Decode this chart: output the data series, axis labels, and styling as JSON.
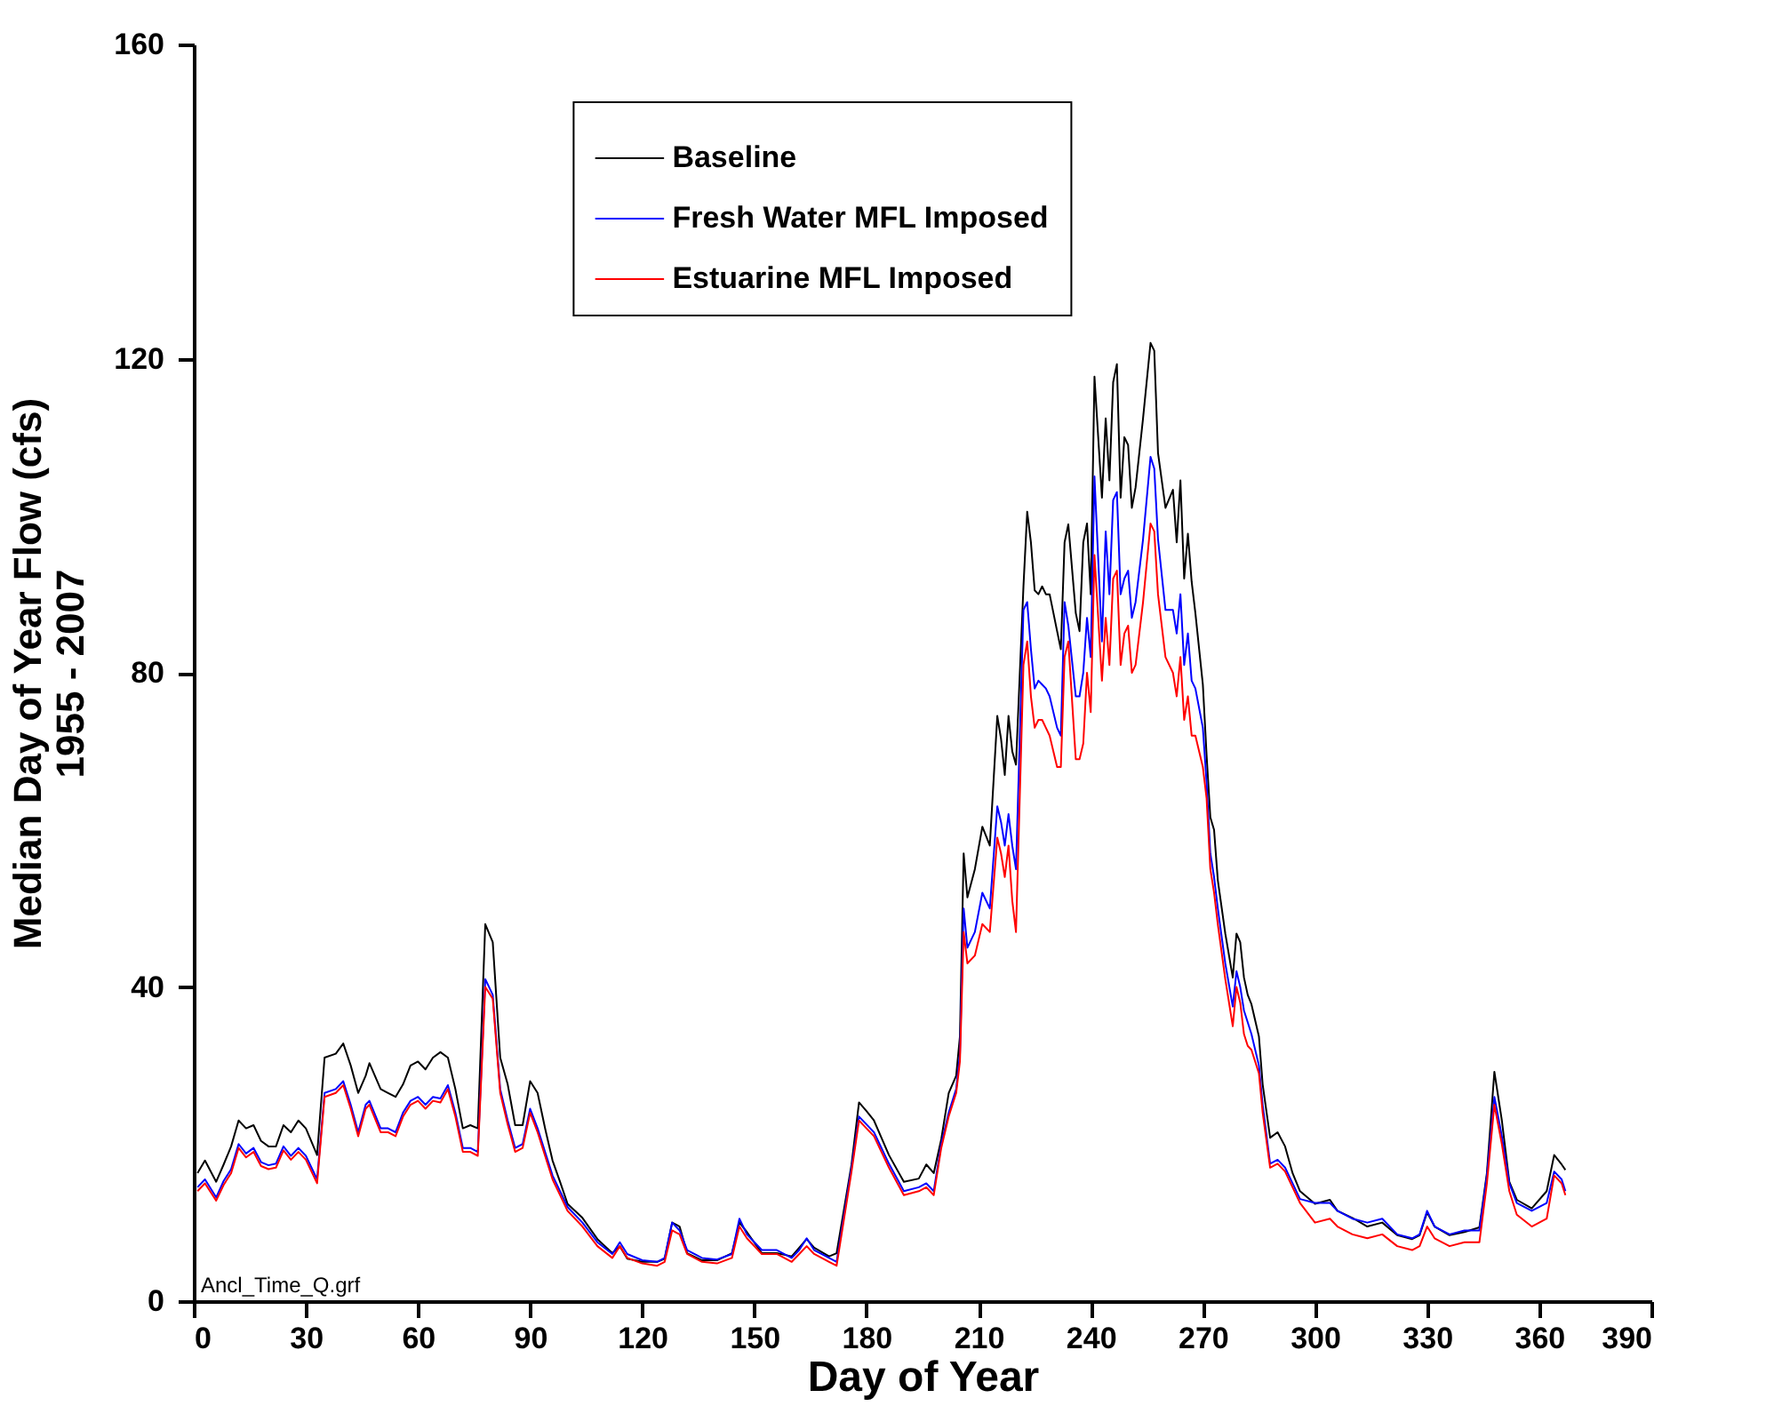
{
  "chart_data": {
    "type": "line",
    "xlabel": "Day of Year",
    "ylabel": "Median Day of Year Flow (cfs)\n1955 - 2007",
    "xlim": [
      0,
      390
    ],
    "xticks": [
      0,
      30,
      60,
      90,
      120,
      150,
      180,
      210,
      240,
      270,
      300,
      330,
      360,
      390
    ],
    "ylim": [
      0,
      160
    ],
    "yticks": [
      0,
      40,
      80,
      120,
      160
    ],
    "grid": false,
    "legend": "top",
    "annotations": [
      "Ancl_Time_Q.grf"
    ],
    "x": [
      1,
      3,
      6,
      8,
      10,
      12,
      14,
      16,
      18,
      20,
      22,
      24,
      26,
      28,
      30,
      33,
      35,
      38,
      40,
      42,
      44,
      46,
      47,
      50,
      52,
      54,
      56,
      58,
      60,
      62,
      64,
      66,
      68,
      70,
      72,
      74,
      76,
      78,
      80,
      82,
      84,
      86,
      88,
      90,
      92,
      94,
      96,
      98,
      100,
      104,
      108,
      112,
      114,
      116,
      120,
      124,
      126,
      128,
      130,
      132,
      136,
      140,
      144,
      146,
      148,
      152,
      156,
      160,
      162,
      164,
      166,
      170,
      172,
      176,
      178,
      180,
      182,
      186,
      190,
      194,
      196,
      198,
      200,
      202,
      204,
      205,
      206,
      207,
      209,
      211,
      213,
      215,
      216,
      217,
      218,
      219,
      220,
      222,
      223,
      224,
      225,
      226,
      227,
      228,
      229,
      231,
      232,
      233,
      234,
      236,
      237,
      238,
      239,
      240,
      241,
      243,
      244,
      245,
      246,
      247,
      248,
      249,
      250,
      251,
      252,
      254,
      256,
      257,
      258,
      260,
      262,
      263,
      264,
      265,
      266,
      267,
      268,
      270,
      271,
      272,
      273,
      274,
      276,
      278,
      279,
      280,
      281,
      282,
      283,
      285,
      286,
      288,
      290,
      292,
      294,
      296,
      300,
      304,
      306,
      310,
      314,
      318,
      322,
      326,
      328,
      330,
      332,
      336,
      340,
      344,
      346,
      348,
      350,
      352,
      354,
      358,
      362,
      364,
      366,
      367
    ],
    "series": [
      {
        "name": "Baseline",
        "color": "#000000",
        "values": [
          16.3,
          17.9,
          15.2,
          17.4,
          19.7,
          23,
          22,
          22.4,
          20.4,
          19.7,
          19.7,
          22.4,
          21.5,
          23,
          22,
          18.6,
          31,
          31.5,
          32.8,
          30,
          26.5,
          28.7,
          30.3,
          27,
          26.5,
          26,
          27.6,
          30,
          30.5,
          29.5,
          31,
          31.7,
          31,
          27,
          22,
          22.4,
          22,
          48,
          45.7,
          31,
          27.6,
          22.4,
          22.4,
          28,
          26.5,
          22,
          17.9,
          15.2,
          12.4,
          10.6,
          7.9,
          6.1,
          7,
          5.4,
          5,
          5,
          5.4,
          10,
          9.5,
          6.1,
          5.2,
          5.2,
          6.1,
          10,
          8.8,
          6.1,
          6.1,
          5.7,
          6.8,
          7.9,
          6.8,
          5.7,
          6.1,
          17.4,
          25.3,
          24.2,
          23,
          18.6,
          15.2,
          15.6,
          17.4,
          16.3,
          20.6,
          26.5,
          28.7,
          33.7,
          57,
          51.4,
          55,
          60.4,
          58,
          74.5,
          71.6,
          67,
          74.5,
          70,
          68.3,
          91,
          100.5,
          96.6,
          90.5,
          90,
          91,
          90,
          90,
          85.3,
          83,
          96.6,
          98.9,
          87.6,
          85.3,
          96.6,
          99,
          90,
          117.7,
          102.3,
          112.4,
          104.5,
          117,
          119.3,
          102.3,
          110,
          109,
          101,
          103.6,
          112.4,
          122,
          121,
          108,
          101,
          103.3,
          96.6,
          104.5,
          92,
          97.7,
          91.6,
          87.6,
          78.5,
          69.5,
          61.6,
          60,
          53.6,
          46.8,
          41.2,
          46.8,
          45.7,
          41.2,
          39,
          37.8,
          33.7,
          27.6,
          20.8,
          21.5,
          19.7,
          16.3,
          14,
          12.4,
          12.9,
          11.5,
          10.6,
          9.5,
          10,
          8.4,
          7.9,
          8.4,
          11.3,
          9.5,
          8.4,
          8.8,
          9.4,
          16.3,
          29.2,
          23,
          15.2,
          12.9,
          11.8,
          14,
          18.6,
          17.4,
          16.7
        ]
      },
      {
        "name": "Fresh Water MFL Imposed",
        "color": "#0000ff",
        "values": [
          14.5,
          15.5,
          13.2,
          15.3,
          16.8,
          20,
          18.8,
          19.5,
          17.7,
          17.3,
          17.5,
          19.7,
          18.5,
          19.5,
          18.5,
          15.5,
          26.5,
          27,
          28,
          25,
          21.5,
          25,
          25.5,
          22,
          22,
          21.5,
          24,
          25.5,
          26,
          25,
          26,
          25.8,
          27.5,
          24,
          19.5,
          19.5,
          19,
          41,
          39,
          27,
          23,
          19.5,
          20,
          24.5,
          22,
          19,
          16,
          14,
          12,
          10,
          7.5,
          6,
          7.5,
          6,
          5.2,
          5,
          5.5,
          10,
          9,
          6.5,
          5.5,
          5.3,
          6,
          10.5,
          8.5,
          6.5,
          6.5,
          5.5,
          6.5,
          8,
          6.5,
          5.5,
          5,
          17,
          23.5,
          22.5,
          21.5,
          17.5,
          14,
          14.5,
          15,
          14,
          20,
          24,
          27,
          31.5,
          50,
          45,
          47,
          52,
          50,
          63,
          61,
          58,
          62,
          58,
          55,
          88,
          89,
          83,
          78,
          79,
          78.5,
          78,
          77,
          73,
          72,
          89,
          86,
          77,
          77,
          80,
          87,
          82,
          105,
          84,
          98,
          90,
          102,
          103,
          90,
          92,
          93,
          87,
          89,
          97,
          107.5,
          106,
          97,
          88,
          88,
          85,
          90,
          81,
          85,
          79,
          78,
          73,
          66,
          57,
          54,
          50,
          43,
          37.5,
          42,
          40,
          37,
          35.5,
          34,
          30,
          25,
          17.5,
          18,
          17,
          15,
          13,
          12.5,
          12.5,
          11.5,
          10.5,
          10,
          10.5,
          8.5,
          8,
          8.5,
          11.5,
          9.5,
          8.5,
          9,
          9,
          16,
          26,
          21,
          15,
          12.5,
          11.5,
          12.5,
          16.5,
          15.5,
          14
        ]
      },
      {
        "name": "Estuarine MFL Imposed",
        "color": "#ff0000",
        "values": [
          14,
          15,
          12.8,
          14.8,
          16.3,
          19.5,
          18.3,
          19,
          17.2,
          16.8,
          17,
          19.2,
          18,
          19,
          18,
          15,
          26,
          26.5,
          27.5,
          24.5,
          21,
          24.5,
          25,
          21.5,
          21.5,
          21,
          23.5,
          25,
          25.5,
          24.5,
          25.5,
          25.3,
          27,
          23.5,
          19,
          19,
          18.5,
          40,
          38.5,
          26.5,
          22.5,
          19,
          19.5,
          24,
          21.5,
          18.5,
          15.5,
          13.5,
          11.5,
          9.5,
          7,
          5.5,
          7,
          5.5,
          4.8,
          4.5,
          5,
          9,
          8.5,
          6,
          5,
          4.8,
          5.5,
          9.5,
          8,
          6,
          6,
          5,
          6,
          7,
          6,
          5,
          4.5,
          16.5,
          23,
          22,
          21,
          17,
          13.5,
          14,
          14.5,
          13.5,
          19.5,
          23.5,
          26.5,
          30.5,
          47,
          43,
          44,
          48,
          47,
          59,
          57,
          54,
          58,
          51,
          47,
          81,
          84,
          77,
          73,
          74,
          74,
          73,
          72,
          68,
          68,
          82,
          84,
          69,
          69,
          71,
          80,
          75,
          95,
          79,
          87,
          81,
          92,
          93,
          81,
          85,
          86,
          80,
          81,
          89,
          99,
          98,
          90,
          82,
          80,
          77,
          82,
          74,
          77,
          72,
          72,
          68,
          64,
          55,
          52,
          48,
          41,
          35,
          40,
          38,
          34,
          32.5,
          32,
          29,
          24,
          17,
          17.5,
          16.5,
          14.5,
          12.5,
          10,
          10.5,
          9.5,
          8.5,
          8,
          8.5,
          7,
          6.5,
          7,
          9.5,
          8,
          7,
          7.5,
          7.5,
          15,
          25,
          20,
          14,
          11,
          9.5,
          10.5,
          16,
          15,
          13.5
        ]
      }
    ]
  }
}
